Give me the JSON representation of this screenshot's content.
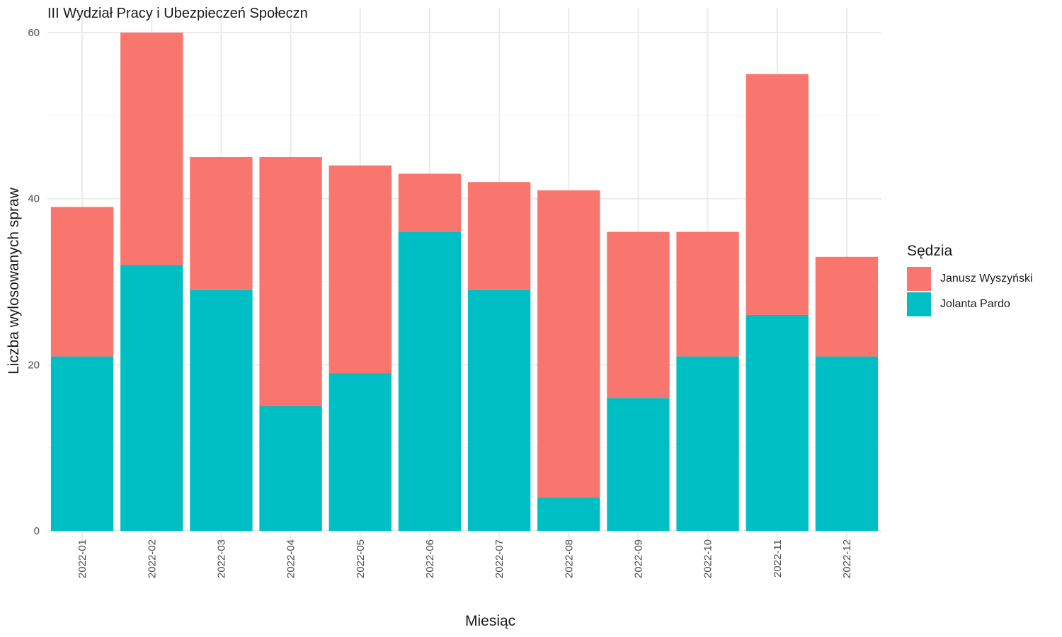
{
  "chart_data": {
    "type": "bar",
    "stacked": true,
    "title": "III Wydział Pracy i Ubezpieczeń Społeczn",
    "xlabel": "Miesiąc",
    "ylabel": "Liczba wylosowanych spraw",
    "categories": [
      "2022-01",
      "2022-02",
      "2022-03",
      "2022-04",
      "2022-05",
      "2022-06",
      "2022-07",
      "2022-08",
      "2022-09",
      "2022-10",
      "2022-11",
      "2022-12"
    ],
    "series": [
      {
        "name": "Jolanta Pardo",
        "color": "#00BFC4",
        "values": [
          21,
          32,
          29,
          15,
          19,
          36,
          29,
          4,
          16,
          21,
          26,
          21
        ]
      },
      {
        "name": "Janusz Wyszyński",
        "color": "#F8766D",
        "values": [
          18,
          28,
          16,
          30,
          25,
          7,
          13,
          37,
          20,
          15,
          29,
          12
        ]
      }
    ],
    "ylim": [
      0,
      60
    ],
    "yticks": [
      0,
      20,
      40,
      60
    ],
    "grid": true,
    "legend": {
      "title": "Sędzia",
      "placement": "right",
      "entries": [
        {
          "name": "Janusz Wyszyński",
          "color": "#F8766D"
        },
        {
          "name": "Jolanta Pardo",
          "color": "#00BFC4"
        }
      ]
    }
  }
}
